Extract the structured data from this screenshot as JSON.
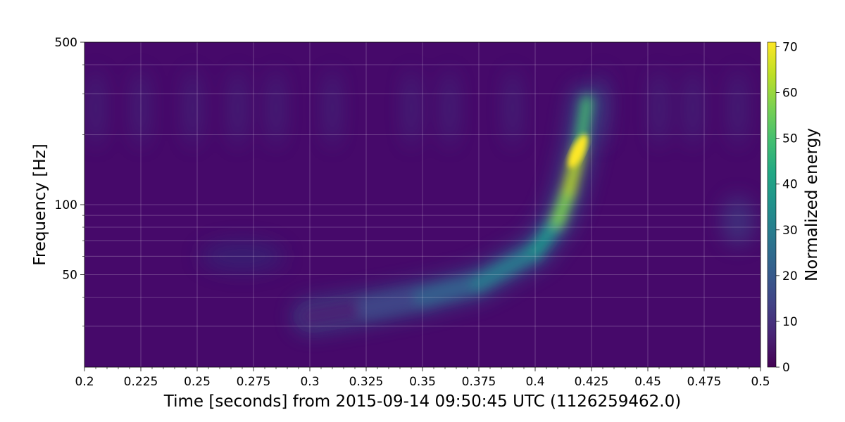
{
  "chart_data": {
    "type": "heatmap",
    "title": "",
    "xlabel": "Time [seconds] from 2015-09-14 09:50:45 UTC (1126259462.0)",
    "ylabel": "Frequency [Hz]",
    "colorbar_label": "Normalized energy",
    "xlim": [
      0.2,
      0.5
    ],
    "ylim": [
      20,
      500
    ],
    "y_scale": "log",
    "x_ticks": [
      {
        "value": 0.2,
        "label": "0.2"
      },
      {
        "value": 0.225,
        "label": "0.225"
      },
      {
        "value": 0.25,
        "label": "0.25"
      },
      {
        "value": 0.275,
        "label": "0.275"
      },
      {
        "value": 0.3,
        "label": "0.3"
      },
      {
        "value": 0.325,
        "label": "0.325"
      },
      {
        "value": 0.35,
        "label": "0.35"
      },
      {
        "value": 0.375,
        "label": "0.375"
      },
      {
        "value": 0.4,
        "label": "0.4"
      },
      {
        "value": 0.425,
        "label": "0.425"
      },
      {
        "value": 0.45,
        "label": "0.45"
      },
      {
        "value": 0.475,
        "label": "0.475"
      },
      {
        "value": 0.5,
        "label": "0.5"
      }
    ],
    "y_ticks": [
      {
        "value": 50,
        "label": "50"
      },
      {
        "value": 100,
        "label": "100"
      },
      {
        "value": 500,
        "label": "500"
      }
    ],
    "colorbar_range": [
      0,
      71
    ],
    "colorbar_ticks": [
      0,
      10,
      20,
      30,
      40,
      50,
      60,
      70
    ],
    "colormap": "viridis",
    "grid": true,
    "chirp_track": {
      "time": [
        0.3,
        0.325,
        0.35,
        0.375,
        0.4,
        0.41,
        0.415,
        0.42,
        0.423
      ],
      "frequency": [
        33,
        36,
        40,
        46,
        63,
        85,
        115,
        180,
        280
      ],
      "peak_energy": [
        2,
        10,
        18,
        22,
        30,
        45,
        62,
        71,
        35
      ]
    },
    "peak": {
      "time": 0.419,
      "frequency": 170,
      "energy": 71
    }
  }
}
